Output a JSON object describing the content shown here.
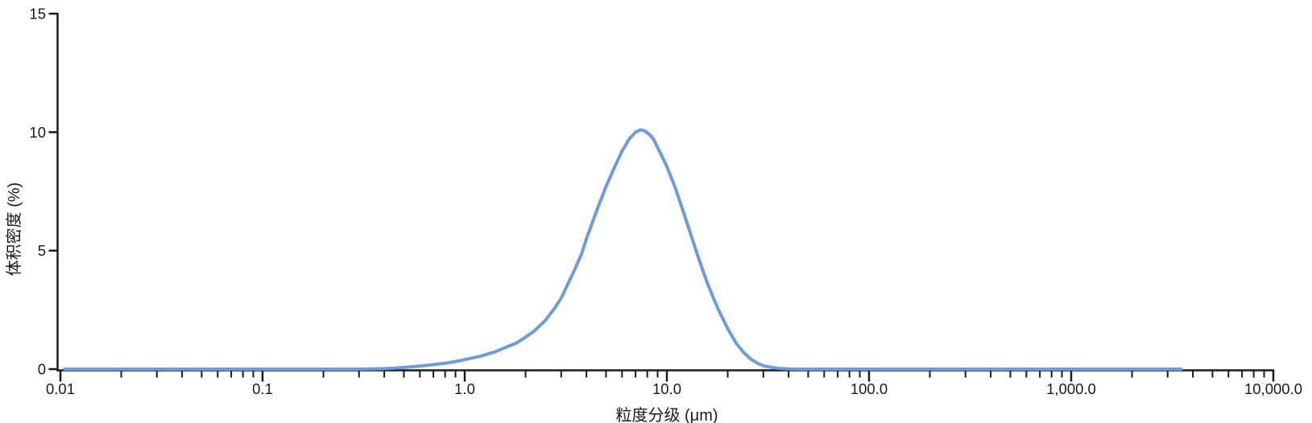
{
  "chart": {
    "background_color": "#ffffff",
    "axis_color": "#1a1a1a",
    "text_color": "#1a1a1a",
    "curve_color": "#6D9BDB"
  },
  "chart_data": {
    "type": "line",
    "title": "",
    "xlabel": "粒度分级 (μm)",
    "ylabel": "体积密度 (%)",
    "xscale": "log",
    "xlim": [
      0.01,
      10000
    ],
    "ylim": [
      0,
      15
    ],
    "grid": false,
    "legend": "none",
    "x_ticks": [
      {
        "value": 0.01,
        "label": "0.01"
      },
      {
        "value": 0.1,
        "label": "0.1"
      },
      {
        "value": 1.0,
        "label": "1.0"
      },
      {
        "value": 10.0,
        "label": "10.0"
      },
      {
        "value": 100.0,
        "label": "100.0"
      },
      {
        "value": 1000.0,
        "label": "1,000.0"
      },
      {
        "value": 10000.0,
        "label": "10,000.0"
      }
    ],
    "y_ticks": [
      {
        "value": 0,
        "label": "0"
      },
      {
        "value": 5,
        "label": "5"
      },
      {
        "value": 10,
        "label": "10"
      },
      {
        "value": 15,
        "label": "15"
      }
    ],
    "series": [
      {
        "name": "体积密度",
        "color": "#6D9BDB",
        "peak": {
          "x_um": 7.4,
          "y_pct": 10.1
        },
        "points": [
          [
            0.0105,
            0
          ],
          [
            0.05,
            0
          ],
          [
            0.1,
            0
          ],
          [
            0.2,
            0
          ],
          [
            0.3,
            0
          ],
          [
            0.4,
            0.02
          ],
          [
            0.45,
            0.04
          ],
          [
            0.5,
            0.07
          ],
          [
            0.6,
            0.13
          ],
          [
            0.7,
            0.19
          ],
          [
            0.8,
            0.25
          ],
          [
            0.9,
            0.32
          ],
          [
            1.0,
            0.4
          ],
          [
            1.2,
            0.55
          ],
          [
            1.4,
            0.72
          ],
          [
            1.6,
            0.92
          ],
          [
            1.8,
            1.1
          ],
          [
            2.0,
            1.35
          ],
          [
            2.2,
            1.6
          ],
          [
            2.5,
            2.05
          ],
          [
            2.8,
            2.6
          ],
          [
            3.0,
            3.0
          ],
          [
            3.2,
            3.5
          ],
          [
            3.5,
            4.2
          ],
          [
            3.8,
            4.9
          ],
          [
            4.0,
            5.5
          ],
          [
            4.5,
            6.7
          ],
          [
            5.0,
            7.7
          ],
          [
            5.5,
            8.5
          ],
          [
            6.0,
            9.2
          ],
          [
            6.5,
            9.7
          ],
          [
            7.0,
            10.0
          ],
          [
            7.4,
            10.1
          ],
          [
            7.8,
            10.05
          ],
          [
            8.2,
            9.9
          ],
          [
            8.6,
            9.7
          ],
          [
            9.0,
            9.35
          ],
          [
            9.5,
            8.95
          ],
          [
            10,
            8.55
          ],
          [
            11,
            7.65
          ],
          [
            12,
            6.7
          ],
          [
            13,
            5.8
          ],
          [
            14,
            4.95
          ],
          [
            15,
            4.2
          ],
          [
            16,
            3.55
          ],
          [
            17,
            3.0
          ],
          [
            18,
            2.5
          ],
          [
            20,
            1.7
          ],
          [
            22,
            1.1
          ],
          [
            24,
            0.7
          ],
          [
            26,
            0.42
          ],
          [
            28,
            0.25
          ],
          [
            30,
            0.14
          ],
          [
            33,
            0.07
          ],
          [
            36,
            0.03
          ],
          [
            40,
            0.01
          ],
          [
            45,
            0
          ],
          [
            60,
            0
          ],
          [
            100,
            0
          ],
          [
            300,
            0
          ],
          [
            1000,
            0
          ],
          [
            2000,
            0
          ],
          [
            3500,
            0
          ]
        ]
      }
    ]
  }
}
